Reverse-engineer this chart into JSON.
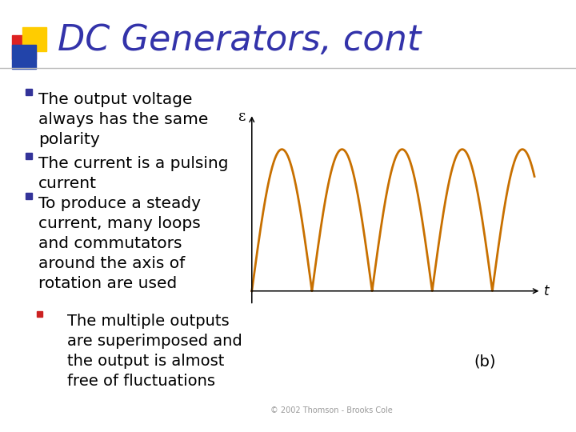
{
  "title": "DC Generators, cont",
  "title_color": "#3333aa",
  "title_fontsize": 32,
  "bg_color": "#ffffff",
  "bullet_color": "#333399",
  "red_bullet_color": "#cc2222",
  "bullet_fontsize": 14.5,
  "copyright": "© 2002 Thomson - Brooks Cole",
  "label_b": "(b)",
  "graph_curve_color": "#c87000",
  "graph_axis_color": "#000000",
  "graph_label_epsilon": "ε",
  "graph_label_t": "t",
  "header_line_color": "#bbbbbb",
  "sq1_color": "#dd2222",
  "sq2_color": "#ffcc00",
  "sq3_color": "#2244aa"
}
